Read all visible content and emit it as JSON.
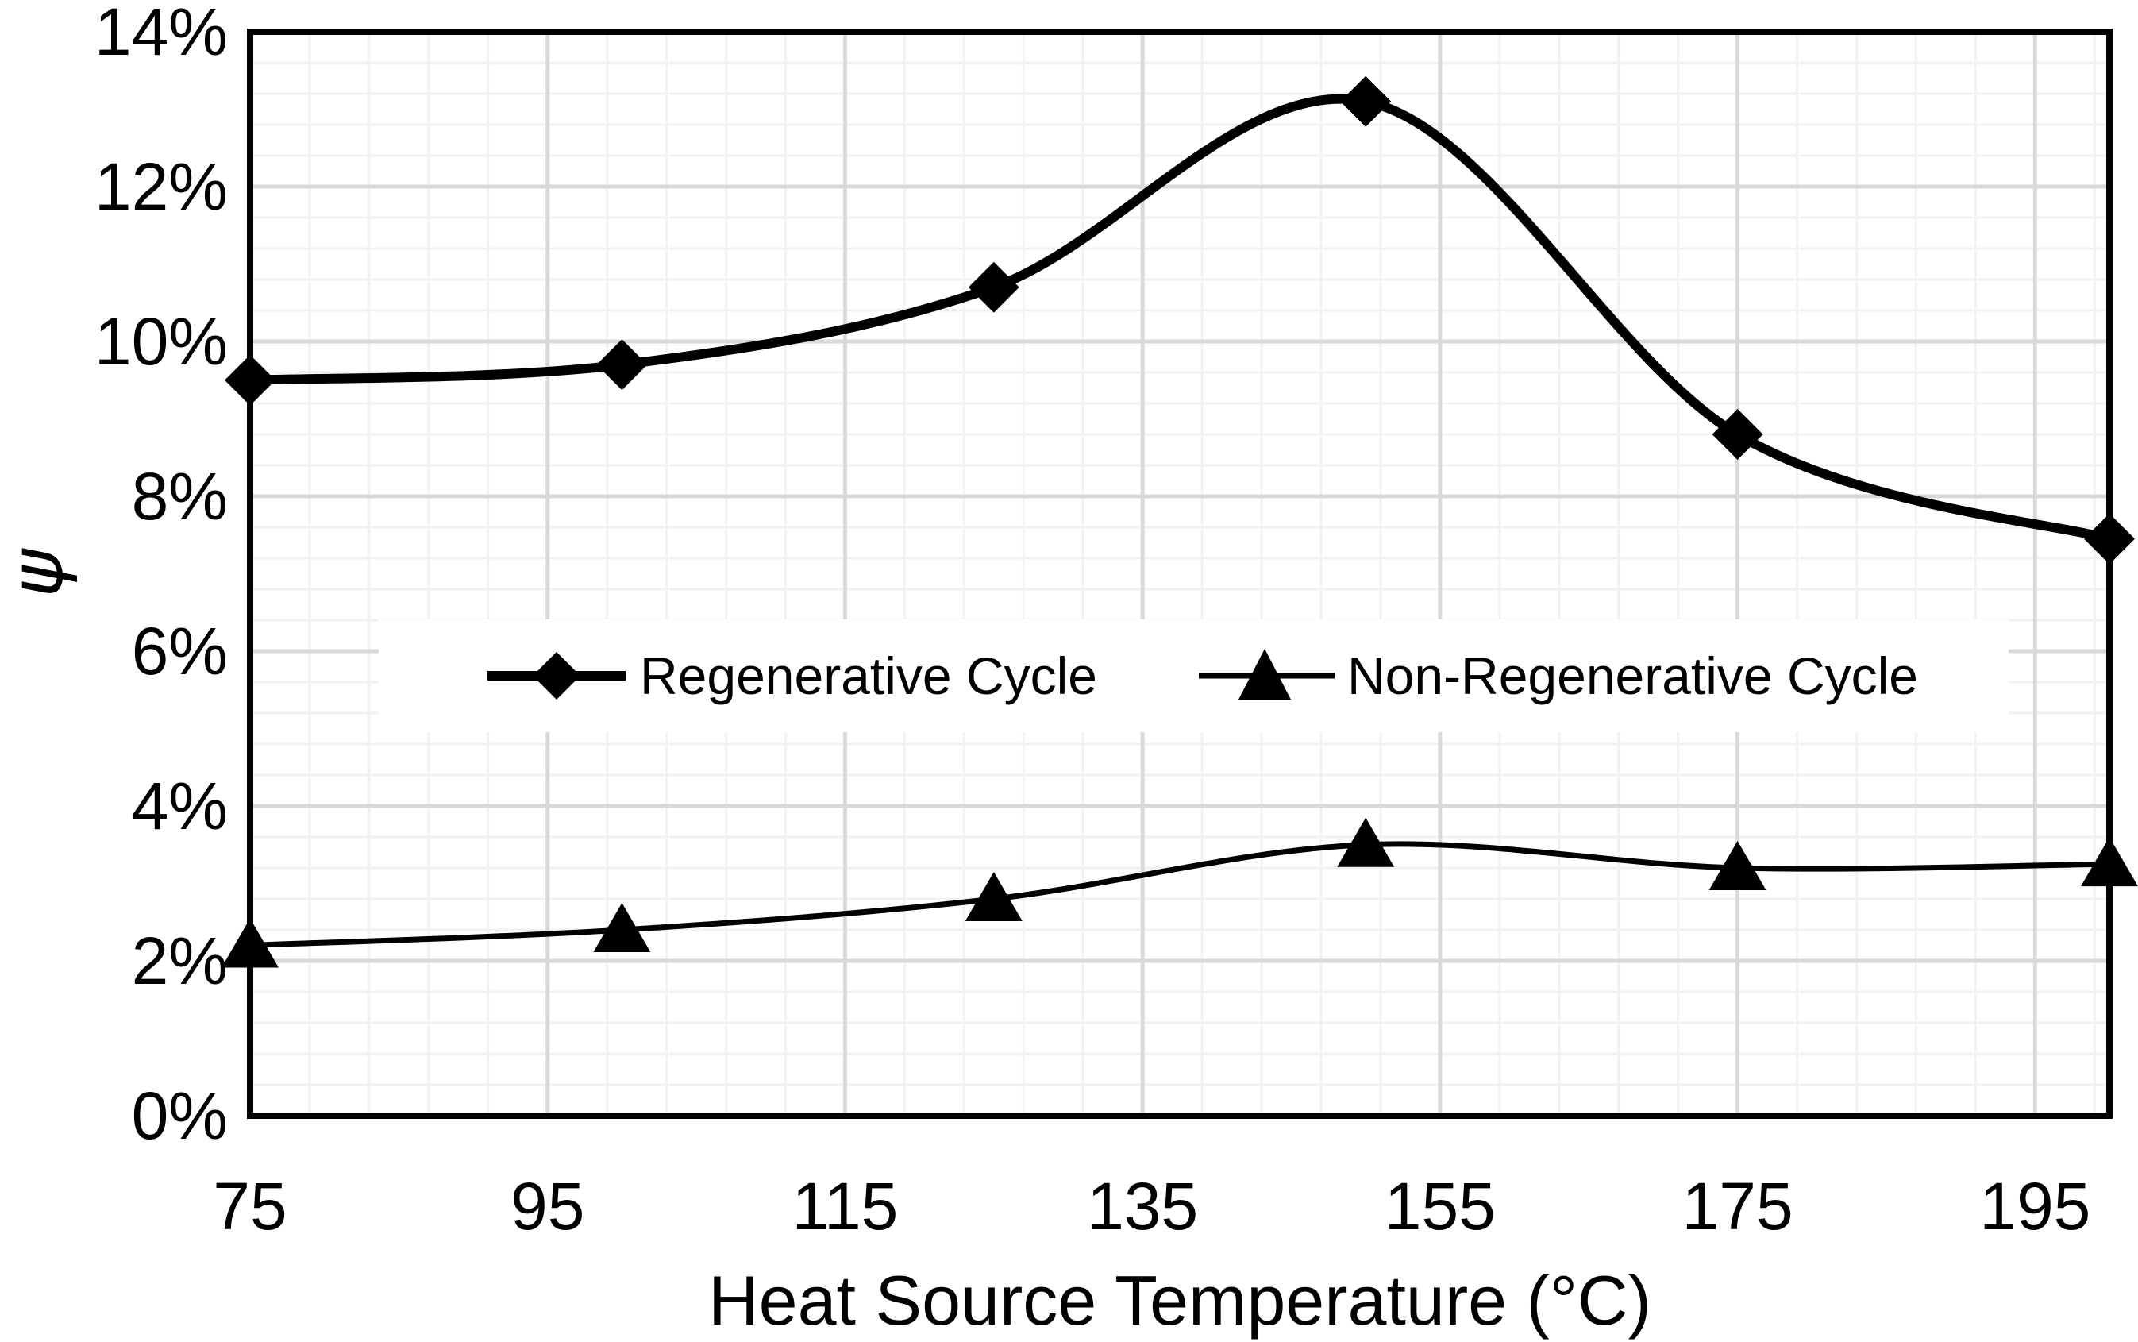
{
  "chart_data": {
    "type": "line",
    "title": "",
    "x": [
      75,
      100,
      125,
      150,
      175,
      200
    ],
    "series": [
      {
        "name": "Regenerative Cycle",
        "marker": "diamond",
        "line_width": 12,
        "values_pct": [
          9.5,
          9.7,
          10.7,
          13.1,
          8.8,
          7.45
        ]
      },
      {
        "name": "Non-Regenerative Cycle",
        "marker": "triangle",
        "line_width": 7,
        "values_pct": [
          2.2,
          2.4,
          2.8,
          3.5,
          3.2,
          3.25
        ]
      }
    ],
    "xlabel": "Heat Source Temperature (°C)",
    "ylabel": "ψ",
    "x_axis": {
      "min": 75,
      "max": 200,
      "major_unit": 20,
      "minor_unit": 4,
      "tick_values": [
        75,
        95,
        115,
        135,
        155,
        175,
        195
      ],
      "tick_labels": [
        "75",
        "95",
        "115",
        "135",
        "155",
        "175",
        "195"
      ]
    },
    "y_axis": {
      "min": 0,
      "max": 14,
      "major_unit": 2,
      "minor_unit": 0.4,
      "tick_values": [
        0,
        2,
        4,
        6,
        8,
        10,
        12,
        14
      ],
      "tick_labels": [
        "0%",
        "2%",
        "4%",
        "6%",
        "8%",
        "10%",
        "12%",
        "14%"
      ]
    },
    "legend": {
      "position": "center",
      "entries": [
        "Regenerative Cycle",
        "Non-Regenerative Cycle"
      ]
    },
    "grid": {
      "show_minor": true,
      "major_color": "#D9D9D9",
      "minor_color": "#F2F2F2"
    },
    "colors": {
      "series_stroke": "#000000",
      "frame": "#000000",
      "background": "#FFFFFF",
      "legend_background": "#FFFFFF",
      "tick_text": "#000000"
    }
  }
}
